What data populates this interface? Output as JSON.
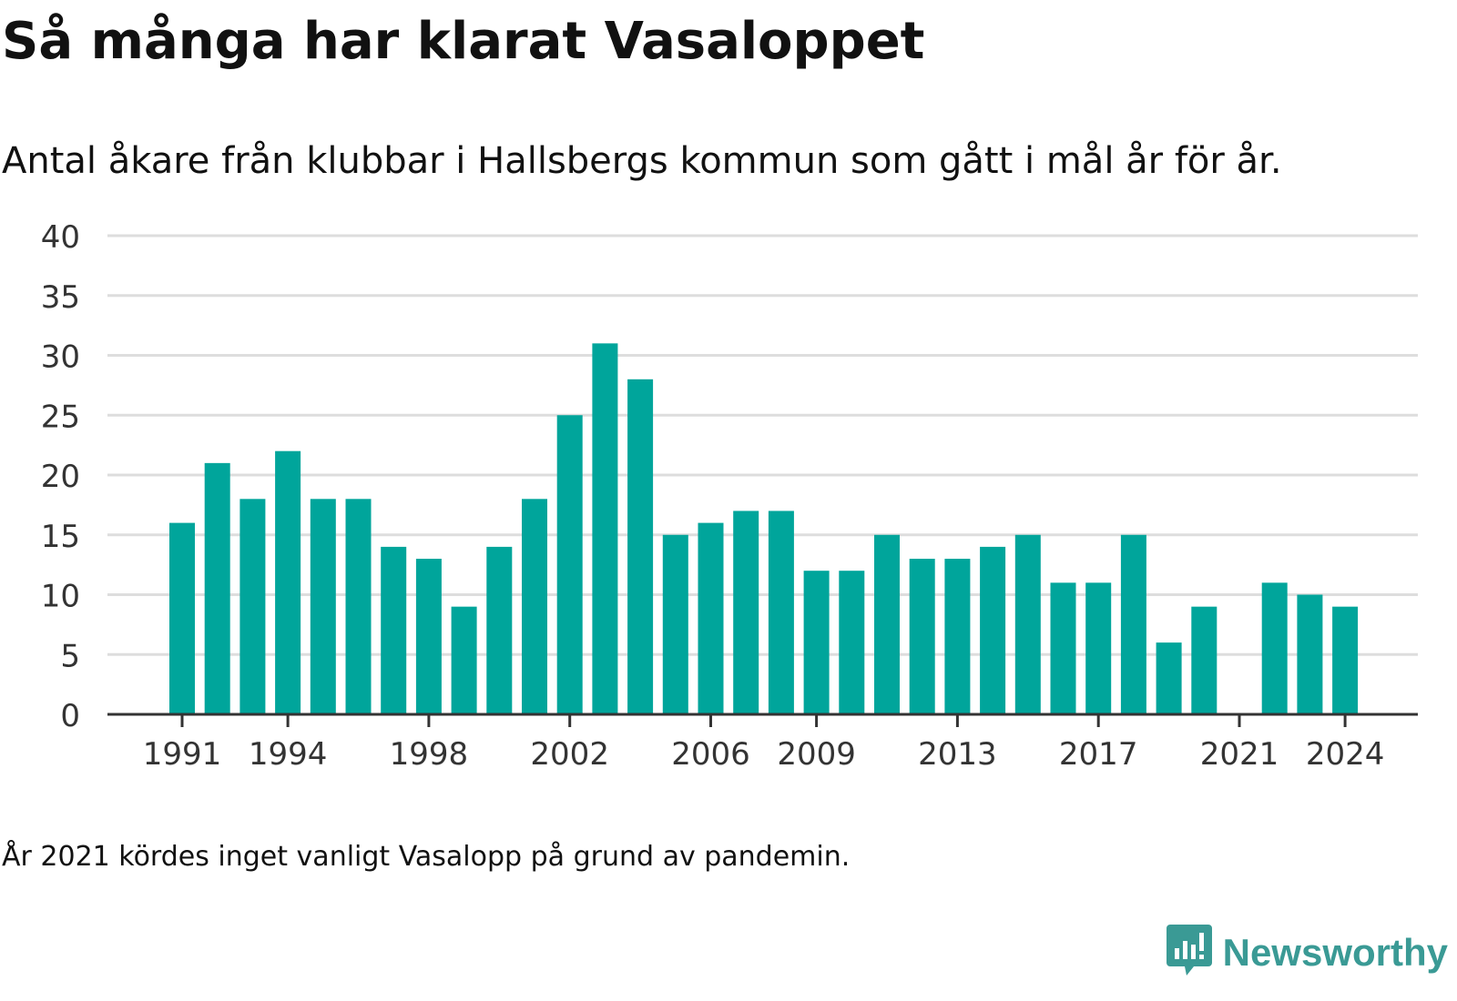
{
  "title": "Så många har klarat Vasaloppet",
  "subtitle": "Antal åkare från klubbar i Hallsbergs kommun som gått i mål år för år.",
  "footnote": "År 2021 kördes inget vanligt Vasalopp på grund av pandemin.",
  "brand": {
    "name": "Newsworthy",
    "logo_icon": "bar-chart-speech-bubble-icon",
    "color": "#3a9a95"
  },
  "colors": {
    "bar": "#00a59b",
    "grid": "#dddddd",
    "axis": "#333333"
  },
  "chart_data": {
    "type": "bar",
    "categories": [
      1991,
      1992,
      1993,
      1994,
      1995,
      1996,
      1997,
      1998,
      1999,
      2000,
      2001,
      2002,
      2003,
      2004,
      2005,
      2006,
      2007,
      2008,
      2009,
      2010,
      2011,
      2012,
      2013,
      2014,
      2015,
      2016,
      2017,
      2018,
      2019,
      2020,
      2021,
      2022,
      2023,
      2024
    ],
    "values": [
      16,
      21,
      18,
      22,
      18,
      18,
      14,
      13,
      9,
      14,
      18,
      25,
      31,
      28,
      15,
      16,
      17,
      17,
      12,
      12,
      15,
      13,
      13,
      14,
      15,
      11,
      11,
      15,
      6,
      9,
      null,
      11,
      10,
      9
    ],
    "x_tick_labels": [
      "1991",
      "1994",
      "1998",
      "2002",
      "2006",
      "2009",
      "2013",
      "2017",
      "2021",
      "2024"
    ],
    "y_ticks": [
      0,
      5,
      10,
      15,
      20,
      25,
      30,
      35,
      40
    ],
    "ylim": [
      0,
      40
    ],
    "grid": true,
    "legend": false
  }
}
